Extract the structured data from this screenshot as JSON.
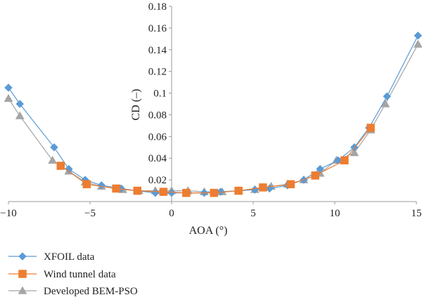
{
  "chart_data": {
    "type": "line",
    "title": "",
    "xlabel": "AOA (°)",
    "ylabel": "CD (–)",
    "xlim": [
      -10,
      15
    ],
    "ylim": [
      0,
      0.18
    ],
    "x_ticks": [
      -10,
      -5,
      0,
      5,
      10,
      15
    ],
    "y_ticks": [
      0.02,
      0.04,
      0.06,
      0.08,
      0.1,
      0.12,
      0.14,
      0.16,
      0.18
    ],
    "x_tick_labels": [
      "−10",
      "−5",
      "0",
      "5",
      "10",
      "15"
    ],
    "y_tick_labels": [
      "0.02",
      "0.04",
      "0.06",
      "0.08",
      "0.1",
      "0.12",
      "0.14",
      "0.16",
      "0.18"
    ],
    "grid": false,
    "legend_position": "bottom-left",
    "series": [
      {
        "name": "XFOIL data",
        "color": "#5b9bd5",
        "marker": "diamond",
        "x": [
          -10,
          -9.3,
          -7.2,
          -6.3,
          -5.3,
          -4.3,
          -3.1,
          -2.1,
          -1.0,
          0.0,
          1.0,
          2.0,
          3.0,
          4.1,
          5.1,
          6.0,
          7.1,
          8.1,
          9.1,
          10.2,
          11.2,
          12.1,
          13.2,
          15.1
        ],
        "y": [
          0.105,
          0.09,
          0.05,
          0.03,
          0.02,
          0.015,
          0.012,
          0.01,
          0.008,
          0.008,
          0.008,
          0.008,
          0.009,
          0.01,
          0.011,
          0.012,
          0.015,
          0.02,
          0.03,
          0.038,
          0.05,
          0.068,
          0.097,
          0.153
        ]
      },
      {
        "name": "Wind tunnel data",
        "color": "#ed7d31",
        "marker": "square",
        "x": [
          -6.8,
          -5.2,
          -3.4,
          -2.1,
          -0.5,
          0.9,
          2.6,
          4.1,
          5.6,
          7.3,
          8.8,
          10.6,
          12.2
        ],
        "y": [
          0.033,
          0.016,
          0.012,
          0.01,
          0.009,
          0.008,
          0.008,
          0.01,
          0.013,
          0.016,
          0.024,
          0.038,
          0.068
        ]
      },
      {
        "name": "Developed BEM-PSO",
        "color": "#a5a5a5",
        "marker": "triangle",
        "x": [
          -10,
          -9.3,
          -7.3,
          -6.3,
          -5.3,
          -4.3,
          -3.0,
          -2.0,
          -1.0,
          0.0,
          1.0,
          2.0,
          3.1,
          4.1,
          5.1,
          6.1,
          7.1,
          8.1,
          9.1,
          10.1,
          11.2,
          12.2,
          13.1,
          15.1
        ],
        "y": [
          0.095,
          0.079,
          0.038,
          0.028,
          0.018,
          0.014,
          0.011,
          0.01,
          0.01,
          0.01,
          0.01,
          0.009,
          0.009,
          0.01,
          0.011,
          0.014,
          0.016,
          0.02,
          0.026,
          0.038,
          0.045,
          0.066,
          0.09,
          0.145
        ]
      }
    ]
  }
}
